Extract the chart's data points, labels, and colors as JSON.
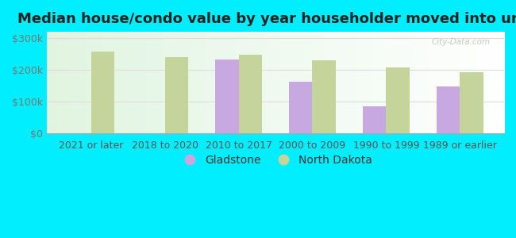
{
  "title": "Median house/condo value by year householder moved into unit",
  "categories": [
    "2021 or later",
    "2018 to 2020",
    "2010 to 2017",
    "2000 to 2009",
    "1990 to 1999",
    "1989 or earlier"
  ],
  "gladstone": [
    null,
    null,
    232000,
    162000,
    85000,
    148000
  ],
  "north_dakota": [
    257000,
    240000,
    248000,
    230000,
    207000,
    192000
  ],
  "gladstone_color": "#c8a8e0",
  "north_dakota_color": "#c5d49a",
  "background_outer": "#00eeff",
  "grid_color": "#dddddd",
  "bar_width": 0.32,
  "ylim": [
    0,
    320000
  ],
  "yticks": [
    0,
    100000,
    200000,
    300000
  ],
  "ytick_labels": [
    "$0",
    "$100k",
    "$200k",
    "$300k"
  ],
  "title_fontsize": 13,
  "tick_fontsize": 9,
  "legend_fontsize": 10
}
